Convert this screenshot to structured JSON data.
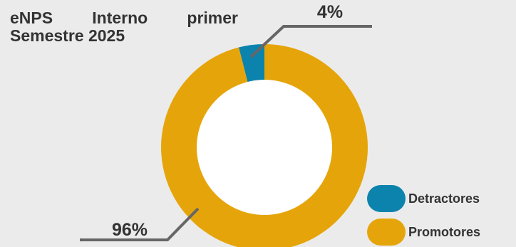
{
  "chart_data": {
    "type": "pie",
    "title": "eNPS Interno primer Semestre 2025",
    "categories": [
      "Detractores",
      "Promotores"
    ],
    "values": [
      4,
      96
    ],
    "value_labels": [
      "4%",
      "96%"
    ],
    "colors": [
      "#0b83ad",
      "#e5a50a"
    ],
    "donut": true,
    "legend_position": "bottom-right"
  }
}
